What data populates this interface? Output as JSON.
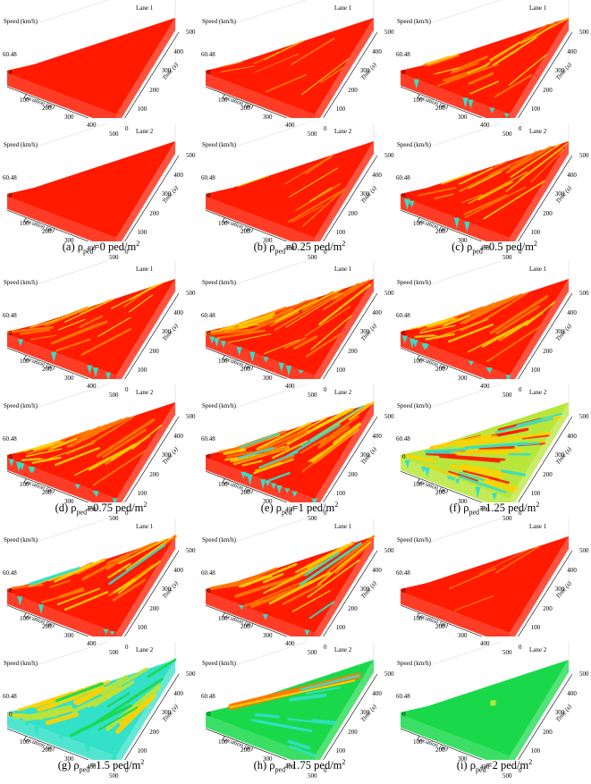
{
  "axis": {
    "z_label": "Speed (km/h)",
    "z_ticks": [
      "60.48",
      "0"
    ],
    "x_label": "Location (m)",
    "x_ticks": [
      "100",
      "200",
      "300",
      "400",
      "500"
    ],
    "y_label": "Time (s)",
    "y_ticks": [
      "0",
      "100",
      "200",
      "300",
      "400",
      "500"
    ]
  },
  "lanes": [
    "Lane 1",
    "Lane 2"
  ],
  "colors": {
    "red": "#ff1a00",
    "orange": "#ff7a00",
    "yellow": "#ffd200",
    "yellowgreen": "#b8e63a",
    "cyan": "#33e0c8",
    "green": "#19d94a"
  },
  "panels": [
    {
      "letter": "(a)",
      "value": "=0 ped/m",
      "rho": "ρ",
      "sub": "ped",
      "sup": "2",
      "surface": {
        "lane1": "red-flat",
        "lane2": "red-flat"
      }
    },
    {
      "letter": "(b)",
      "value": "=0.25 ped/m",
      "rho": "ρ",
      "sub": "ped",
      "sup": "2",
      "surface": {
        "lane1": "red-light-streaks",
        "lane2": "red-light-streaks"
      }
    },
    {
      "letter": "(c)",
      "value": "=0.5 ped/m",
      "rho": "ρ",
      "sub": "ped",
      "sup": "2",
      "surface": {
        "lane1": "red-moderate",
        "lane2": "red-moderate"
      }
    },
    {
      "letter": "(d)",
      "value": "=0.75 ped/m",
      "rho": "ρ",
      "sub": "ped",
      "sup": "2",
      "surface": {
        "lane1": "red-moderate",
        "lane2": "red-heavy"
      }
    },
    {
      "letter": "(e)",
      "value": "=1 ped/m",
      "rho": "ρ",
      "sub": "ped",
      "sup": "2",
      "surface": {
        "lane1": "red-heavy",
        "lane2": "mixed"
      }
    },
    {
      "letter": "(f)",
      "value": "=1.25 ped/m",
      "rho": "ρ",
      "sub": "ped",
      "sup": "2",
      "surface": {
        "lane1": "red-heavy",
        "lane2": "mixed-green"
      }
    },
    {
      "letter": "(g)",
      "value": "=1.5 ped/m",
      "rho": "ρ",
      "sub": "ped",
      "sup": "2",
      "surface": {
        "lane1": "red-diagonal",
        "lane2": "cyan-yellow"
      }
    },
    {
      "letter": "(h)",
      "value": "=1.75 ped/m",
      "rho": "ρ",
      "sub": "ped",
      "sup": "2",
      "surface": {
        "lane1": "red-diagonal",
        "lane2": "green-band"
      }
    },
    {
      "letter": "(i)",
      "value": "=2 ped/m",
      "rho": "ρ",
      "sub": "ped",
      "sup": "2",
      "surface": {
        "lane1": "red-smooth",
        "lane2": "green-flat"
      }
    }
  ],
  "chart_data": {
    "type": "heatmap",
    "description_of_axes": "3D surface: speed over location and time",
    "xlabel": "Location (m)",
    "ylabel": "Time (s)",
    "zlabel": "Speed (km/h)",
    "xlim": [
      0,
      500
    ],
    "ylim": [
      0,
      500
    ],
    "zlim": [
      0,
      60.48
    ],
    "pedestrian_density_ped_per_m2": [
      0,
      0.25,
      0.5,
      0.75,
      1,
      1.25,
      1.5,
      1.75,
      2
    ]
  }
}
